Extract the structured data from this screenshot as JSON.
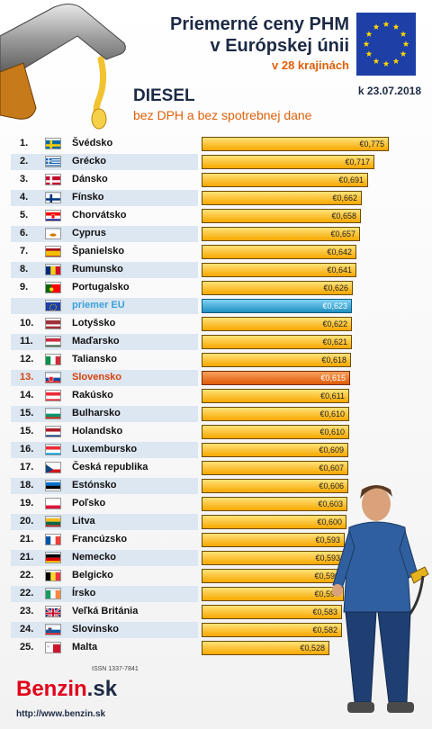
{
  "header": {
    "title_line1": "Priemerné ceny PHM",
    "title_line2": "v Európskej únii",
    "subtitle": "v 28 krajinách",
    "date": "k 23.07.2018",
    "fuel": "DIESEL",
    "note": "bez DPH a bez spotrebnej dane"
  },
  "colors": {
    "bar": "#f6a800",
    "eu_bar": "#1f8fc2",
    "sk_bar": "#de5a07",
    "title": "#1c2a44",
    "accent": "#e0600a"
  },
  "chart_data": {
    "type": "bar",
    "orientation": "horizontal",
    "rows": [
      {
        "rank": "1.",
        "country": "Švédsko",
        "value": 0.775,
        "label": "€0,775",
        "flag": "se"
      },
      {
        "rank": "2.",
        "country": "Grécko",
        "value": 0.717,
        "label": "€0,717",
        "flag": "gr"
      },
      {
        "rank": "3.",
        "country": "Dánsko",
        "value": 0.691,
        "label": "€0,691",
        "flag": "dk"
      },
      {
        "rank": "4.",
        "country": "Fínsko",
        "value": 0.662,
        "label": "€0,662",
        "flag": "fi"
      },
      {
        "rank": "5.",
        "country": "Chorvátsko",
        "value": 0.658,
        "label": "€0,658",
        "flag": "hr"
      },
      {
        "rank": "6.",
        "country": "Cyprus",
        "value": 0.657,
        "label": "€0,657",
        "flag": "cy"
      },
      {
        "rank": "7.",
        "country": "Španielsko",
        "value": 0.642,
        "label": "€0,642",
        "flag": "es"
      },
      {
        "rank": "8.",
        "country": "Rumunsko",
        "value": 0.641,
        "label": "€0,641",
        "flag": "ro"
      },
      {
        "rank": "9.",
        "country": "Portugalsko",
        "value": 0.626,
        "label": "€0,626",
        "flag": "pt"
      },
      {
        "rank": "",
        "country": "priemer EU",
        "value": 0.623,
        "label": "€0,623",
        "flag": "eu",
        "kind": "eu"
      },
      {
        "rank": "10.",
        "country": "Lotyšsko",
        "value": 0.622,
        "label": "€0,622",
        "flag": "lv"
      },
      {
        "rank": "11.",
        "country": "Maďarsko",
        "value": 0.621,
        "label": "€0,621",
        "flag": "hu"
      },
      {
        "rank": "12.",
        "country": "Taliansko",
        "value": 0.618,
        "label": "€0,618",
        "flag": "it"
      },
      {
        "rank": "13.",
        "country": "Slovensko",
        "value": 0.615,
        "label": "€0,615",
        "flag": "sk",
        "kind": "sk"
      },
      {
        "rank": "14.",
        "country": "Rakúsko",
        "value": 0.611,
        "label": "€0,611",
        "flag": "at"
      },
      {
        "rank": "15.",
        "country": "Bulharsko",
        "value": 0.61,
        "label": "€0,610",
        "flag": "bg"
      },
      {
        "rank": "15.",
        "country": "Holandsko",
        "value": 0.61,
        "label": "€0,610",
        "flag": "nl"
      },
      {
        "rank": "16.",
        "country": "Luxembursko",
        "value": 0.609,
        "label": "€0,609",
        "flag": "lu"
      },
      {
        "rank": "17.",
        "country": "Česká republika",
        "value": 0.607,
        "label": "€0,607",
        "flag": "cz"
      },
      {
        "rank": "18.",
        "country": "Estónsko",
        "value": 0.606,
        "label": "€0,606",
        "flag": "ee"
      },
      {
        "rank": "19.",
        "country": "Poľsko",
        "value": 0.603,
        "label": "€0,603",
        "flag": "pl"
      },
      {
        "rank": "20.",
        "country": "Litva",
        "value": 0.6,
        "label": "€0,600",
        "flag": "lt"
      },
      {
        "rank": "21.",
        "country": "Francúzsko",
        "value": 0.593,
        "label": "€0,593",
        "flag": "fr"
      },
      {
        "rank": "21.",
        "country": "Nemecko",
        "value": 0.593,
        "label": "€0,593",
        "flag": "de"
      },
      {
        "rank": "22.",
        "country": "Belgicko",
        "value": 0.59,
        "label": "€0,590",
        "flag": "be"
      },
      {
        "rank": "22.",
        "country": "Írsko",
        "value": 0.59,
        "label": "€0,590",
        "flag": "ie"
      },
      {
        "rank": "23.",
        "country": "Veľká Británia",
        "value": 0.583,
        "label": "€0,583",
        "flag": "gb"
      },
      {
        "rank": "24.",
        "country": "Slovinsko",
        "value": 0.582,
        "label": "€0,582",
        "flag": "si"
      },
      {
        "rank": "25.",
        "country": "Malta",
        "value": 0.528,
        "label": "€0,528",
        "flag": "mt"
      }
    ]
  },
  "footer": {
    "issn": "ISSN 1337-7841",
    "logo_main": "Benzin",
    "logo_tld": ".sk",
    "url": "http://www.benzin.sk"
  }
}
